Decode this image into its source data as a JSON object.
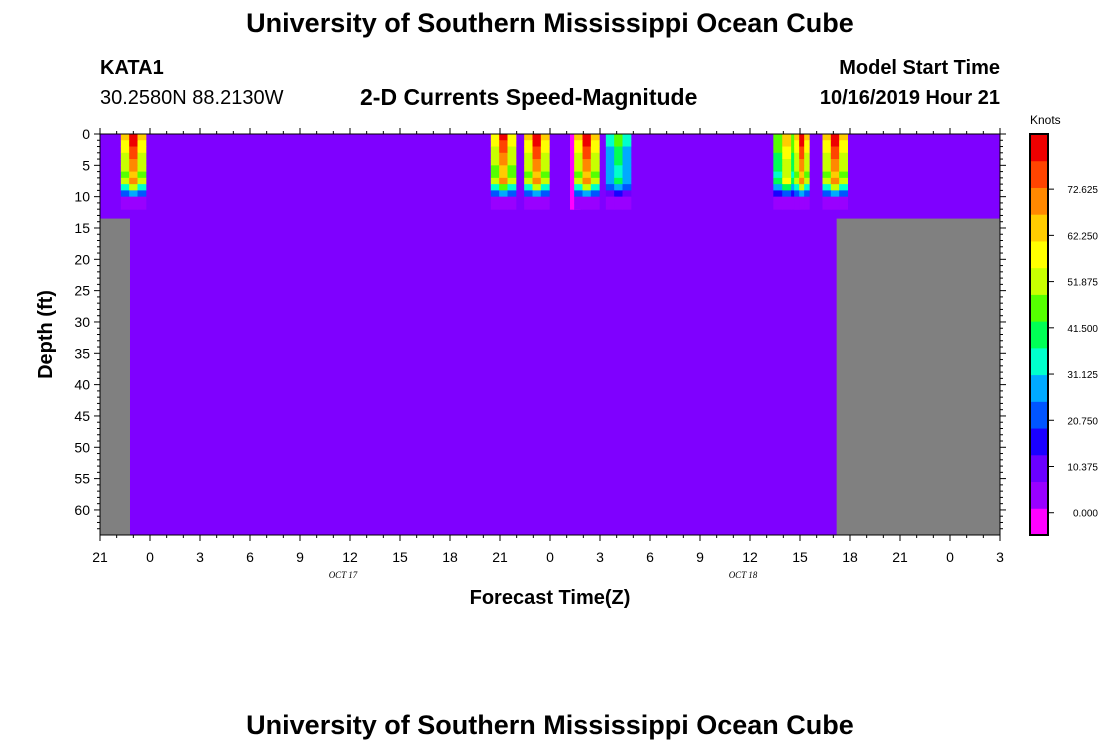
{
  "header": {
    "title": "University of Southern Mississippi Ocean Cube",
    "station_id": "KATA1",
    "station_coords": "30.2580N 88.2130W",
    "chart_subtitle": "2-D Currents Speed-Magnitude",
    "model_label": "Model Start Time",
    "model_time": "10/16/2019 Hour 21"
  },
  "footer": {
    "title": "University of Southern Mississippi Ocean Cube"
  },
  "colors": {
    "background_water": "#7f00ff",
    "land": "#808080",
    "colorbar": [
      "#ff00ff",
      "#9900ff",
      "#6a00ff",
      "#1a00ff",
      "#0055ff",
      "#00aaff",
      "#00ffcc",
      "#00ff55",
      "#55ff00",
      "#c8ff00",
      "#ffff00",
      "#ffcc00",
      "#ff8800",
      "#ff4400",
      "#ee0000"
    ]
  },
  "chart_data": {
    "type": "heatmap",
    "title": "2-D Currents Speed-Magnitude",
    "xlabel": "Forecast Time(Z)",
    "ylabel": "Depth (ft)",
    "x_ticks": [
      "21",
      "0",
      "3",
      "6",
      "9",
      "12",
      "15",
      "18",
      "21",
      "0",
      "3",
      "6",
      "9",
      "12",
      "15",
      "18",
      "21",
      "0",
      "3"
    ],
    "x_range_hours": [
      0,
      54
    ],
    "date_labels": [
      {
        "text": "OCT 17",
        "hour": 15
      },
      {
        "text": "OCT 18",
        "hour": 39
      }
    ],
    "y_ticks": [
      "0",
      "5",
      "10",
      "15",
      "20",
      "25",
      "30",
      "35",
      "40",
      "45",
      "50",
      "55",
      "60"
    ],
    "y_range_ft": [
      0,
      64
    ],
    "colorbar": {
      "label": "Knots",
      "ticks": [
        "72.625",
        "62.250",
        "51.875",
        "41.500",
        "31.125",
        "20.750",
        "10.375",
        "0.000"
      ],
      "range": [
        -5,
        85
      ]
    },
    "land_regions": [
      {
        "x0": 0,
        "x1": 1.8,
        "y0": 13.5,
        "y1": 64
      },
      {
        "x0": 44.2,
        "x1": 54,
        "y0": 13.5,
        "y1": 64
      }
    ],
    "water_depth_top_ft": 13.5,
    "current_events": [
      {
        "hour": 2.0,
        "width": 1.5,
        "peak": 84,
        "depth_ft": 12
      },
      {
        "hour": 24.2,
        "width": 1.5,
        "peak": 82,
        "depth_ft": 12
      },
      {
        "hour": 26.2,
        "width": 1.5,
        "peak": 84,
        "depth_ft": 12
      },
      {
        "hour": 28.5,
        "width": 0.6,
        "peak": -4,
        "depth_ft": 12
      },
      {
        "hour": 29.2,
        "width": 1.5,
        "peak": 84,
        "depth_ft": 12
      },
      {
        "hour": 31.1,
        "width": 1.5,
        "peak": 45,
        "depth_ft": 12
      },
      {
        "hour": 41.2,
        "width": 1.6,
        "peak": 65,
        "depth_ft": 12
      },
      {
        "hour": 42.1,
        "width": 0.9,
        "peak": 84,
        "depth_ft": 12
      },
      {
        "hour": 44.1,
        "width": 1.5,
        "peak": 84,
        "depth_ft": 12
      }
    ]
  }
}
